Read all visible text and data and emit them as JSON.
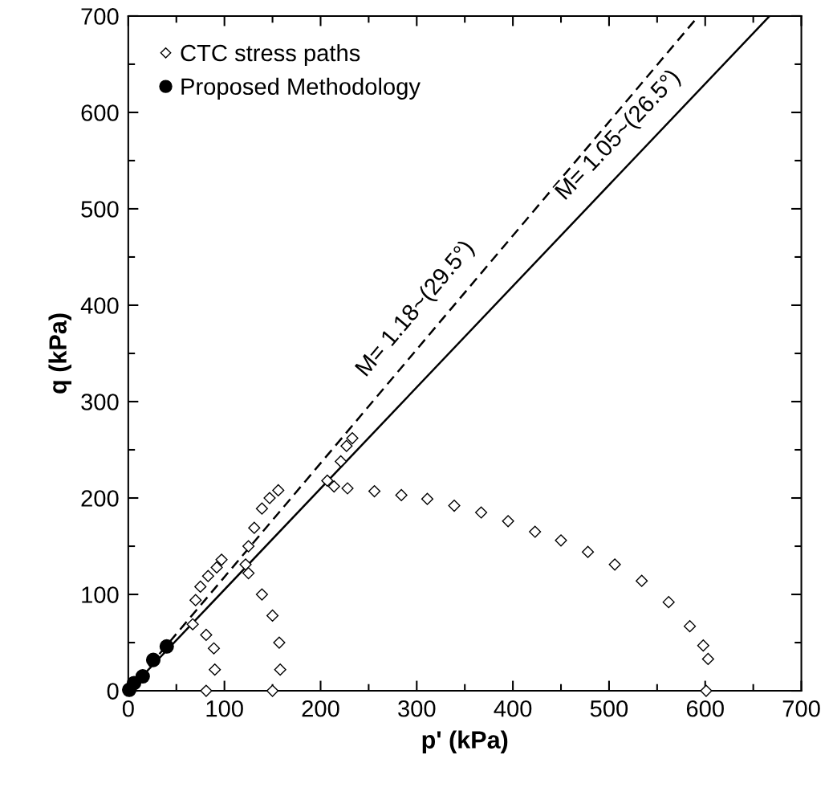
{
  "chart_data": {
    "type": "scatter",
    "xlabel": "p' (kPa)",
    "ylabel": "q (kPa)",
    "xlim": [
      0,
      700
    ],
    "ylim": [
      0,
      700
    ],
    "xticks": [
      0,
      100,
      200,
      300,
      400,
      500,
      600,
      700
    ],
    "yticks": [
      0,
      100,
      200,
      300,
      400,
      500,
      600,
      700
    ],
    "grid": false,
    "legend": "top left",
    "series": [
      {
        "name": "CTC stress paths",
        "marker": "diamond",
        "color": "#ffffff",
        "x": [
          81,
          90,
          89,
          81,
          67,
          70,
          75,
          83,
          92,
          97
        ],
        "values": [
          0,
          22,
          44,
          58,
          69,
          94,
          108,
          119,
          128,
          136
        ]
      },
      {
        "marker": "diamond",
        "color": "#ffffff",
        "x": [
          150,
          158,
          157,
          150,
          139,
          125,
          122,
          125,
          131,
          139,
          147,
          156
        ],
        "values": [
          0,
          22,
          50,
          78,
          100,
          122,
          131,
          150,
          169,
          189,
          200,
          208
        ]
      },
      {
        "marker": "diamond",
        "color": "#ffffff",
        "x": [
          601,
          603,
          598,
          584,
          562,
          534,
          506,
          478,
          450,
          423,
          395,
          367,
          339,
          311,
          284,
          256,
          228,
          214,
          207,
          221,
          227,
          233
        ],
        "values": [
          0,
          33,
          47,
          67,
          92,
          114,
          131,
          144,
          156,
          165,
          176,
          185,
          192,
          199,
          203,
          207,
          210,
          212,
          218,
          238,
          254,
          262
        ]
      },
      {
        "name": "Proposed Methodology",
        "marker": "circle",
        "color": "#000000",
        "x": [
          1,
          6,
          15,
          26,
          40
        ],
        "values": [
          1,
          8,
          15,
          32,
          46
        ]
      },
      {
        "type": "line",
        "line_style": "dashed",
        "color": "#000000",
        "x": [
          0,
          593
        ],
        "values": [
          0,
          700
        ]
      },
      {
        "type": "line",
        "line_style": "solid",
        "color": "#000000",
        "x": [
          0,
          667
        ],
        "values": [
          0,
          700
        ]
      }
    ],
    "annotations": [
      {
        "text": "M= 1.18~(29.5°)",
        "x": 320,
        "y": 378
      },
      {
        "text": "M= 1.05~(26.5°)",
        "x": 530,
        "y": 557
      }
    ]
  }
}
